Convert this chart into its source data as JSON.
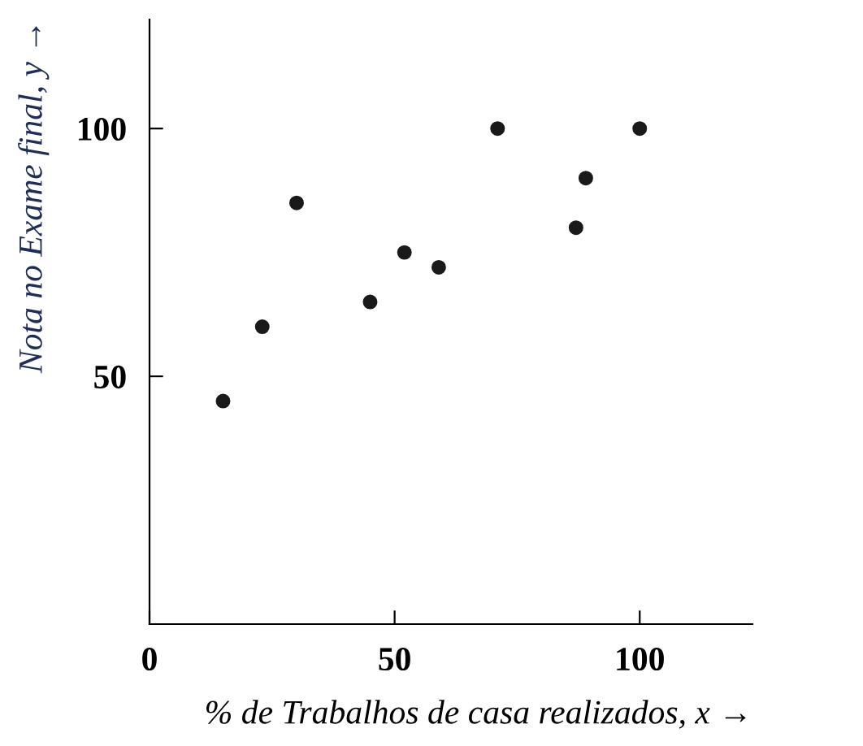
{
  "chart_data": {
    "type": "scatter",
    "xlabel": "% de Trabalhos de casa realizados, x →",
    "ylabel": "Nota no Exame final, y →",
    "x": [
      15,
      23,
      30,
      45,
      52,
      59,
      71,
      87,
      89,
      100
    ],
    "series": [
      {
        "color": "#1a1a1a",
        "values": [
          45,
          60,
          85,
          65,
          75,
          72,
          100,
          80,
          90,
          100
        ]
      }
    ],
    "xlim": [
      0,
      123
    ],
    "ylim": [
      0,
      122
    ],
    "xticks": [
      0,
      50,
      100
    ],
    "yticks": [
      50,
      100
    ],
    "marker": "circle",
    "grid": false,
    "legend": false
  }
}
